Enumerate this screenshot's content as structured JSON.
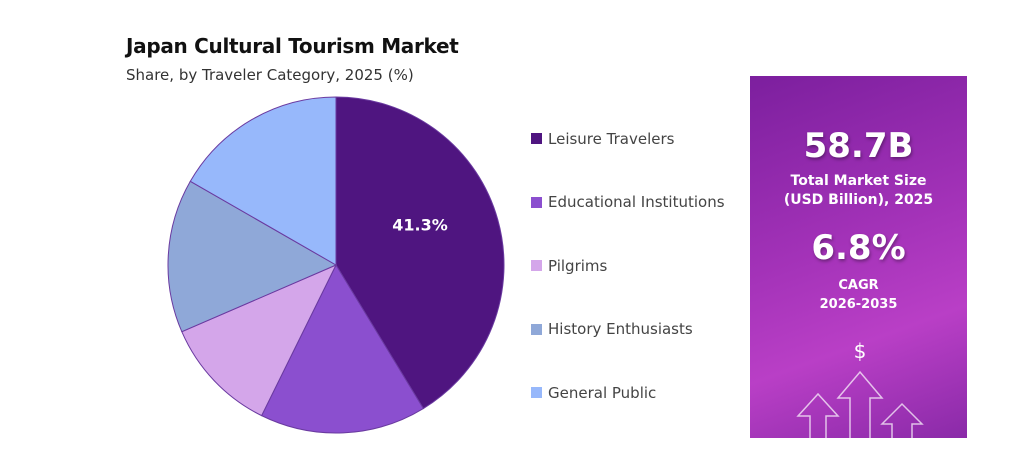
{
  "chart_data": {
    "type": "pie",
    "title": "Japan Cultural Tourism Market",
    "subtitle": "Share, by Traveler Category, 2025 (%)",
    "categories": [
      "Leisure Travelers",
      "Educational Institutions",
      "Pilgrims",
      "History Enthusiasts",
      "General Public"
    ],
    "values": [
      41.3,
      16.0,
      11.2,
      14.8,
      16.7
    ],
    "data_labels": [
      "41.3%",
      "",
      "",
      "",
      ""
    ],
    "colors": [
      "#4f1580",
      "#8b4fcf",
      "#d4a6ea",
      "#8fa8d8",
      "#97b8fb"
    ],
    "legend_placement": "right"
  },
  "panel": {
    "market_size": "58.7B",
    "market_size_label_1": "Total Market Size",
    "market_size_label_2": "(USD Billion), 2025",
    "cagr": "6.8%",
    "cagr_label_1": "CAGR",
    "cagr_label_2": "2026-2035",
    "icon": "dollar-growth-arrows-icon"
  }
}
